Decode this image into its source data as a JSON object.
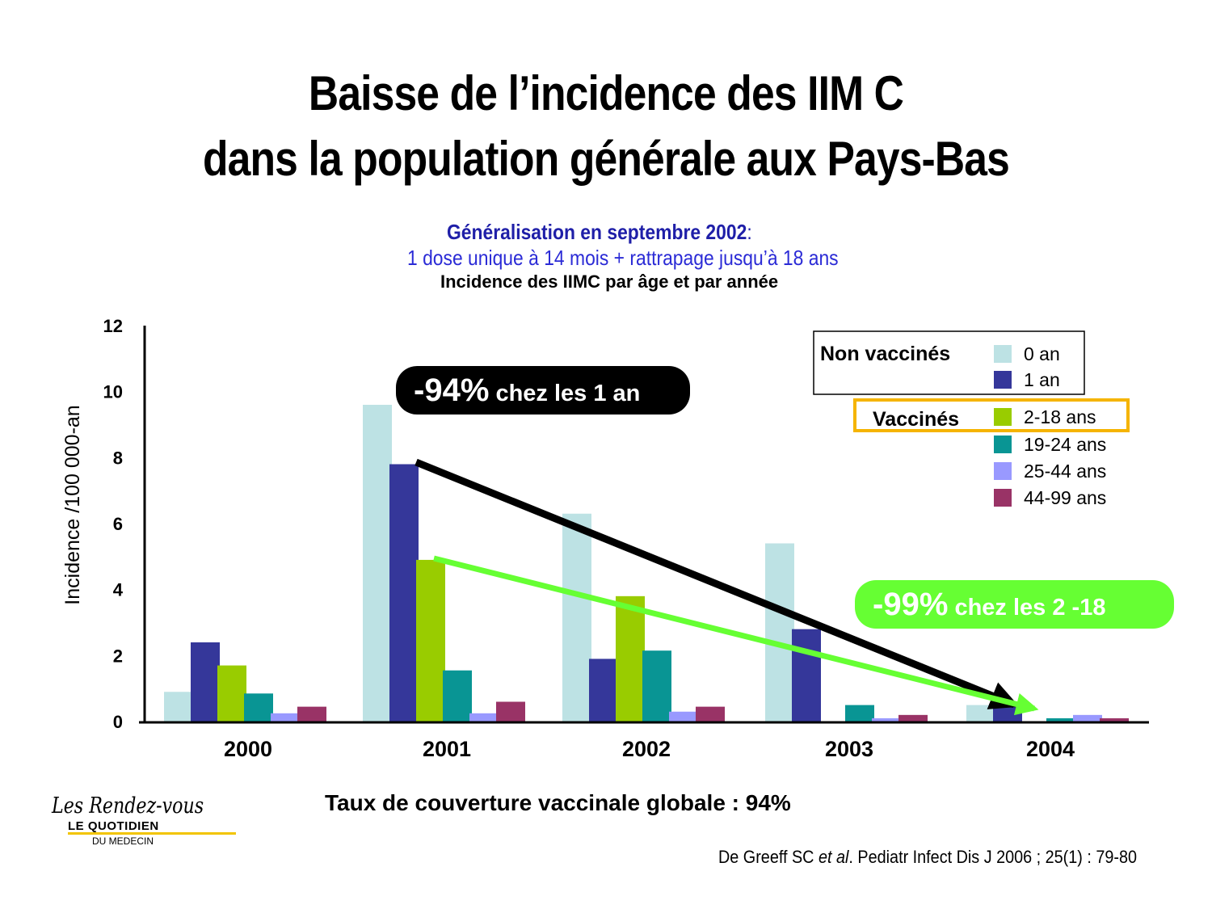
{
  "slide": {
    "title_line1": "Baisse de l’incidence des IIM C",
    "title_line2": "dans la population générale aux Pays-Bas",
    "subtitle_bold": "Généralisation en septembre 2002",
    "subtitle_colon": ":",
    "subtitle_line2": "1 dose unique à 14 mois + rattrapage jusqu’à 18 ans",
    "chart_heading": "Incidence des IIMC par âge et par année",
    "footer": "Taux de couverture vaccinale globale : 94%",
    "citation_authors": "De Greeff SC ",
    "citation_etal": "et al",
    "citation_rest": ".  Pediatr Infect Dis J 2006 ; 25(1) : 79-80",
    "logo": {
      "script": "Les Rendez-vous",
      "brand": "LE QUOTIDIEN",
      "sub": "DU MEDECIN"
    }
  },
  "chart_data": {
    "type": "bar",
    "title": "Incidence des IIMC par âge et par année",
    "ylabel": "Incidence /100 000-an",
    "xlabel": "",
    "ylim": [
      0,
      12
    ],
    "yticks": [
      "0",
      "2",
      "4",
      "6",
      "8",
      "10",
      "12"
    ],
    "categories": [
      "2000",
      "2001",
      "2002",
      "2003",
      "2004"
    ],
    "series": [
      {
        "name": "0 an",
        "group": "Non vaccinés",
        "color": "#bde2e4",
        "values": [
          0.9,
          9.6,
          6.3,
          5.4,
          0.5
        ]
      },
      {
        "name": "1 an",
        "group": "Non vaccinés",
        "color": "#35379a",
        "values": [
          2.4,
          7.8,
          1.9,
          2.8,
          0.5
        ]
      },
      {
        "name": "2-18 ans",
        "group": "Vaccinés",
        "color": "#99cc00",
        "values": [
          1.7,
          4.9,
          3.8,
          0.0,
          0.0
        ]
      },
      {
        "name": "19-24 ans",
        "group": "Vaccinés",
        "color": "#099594",
        "values": [
          0.85,
          1.55,
          2.15,
          0.5,
          0.1
        ]
      },
      {
        "name": "25-44 ans",
        "group": "Vaccinés",
        "color": "#9999ff",
        "values": [
          0.25,
          0.25,
          0.3,
          0.1,
          0.2
        ]
      },
      {
        "name": "44-99 ans",
        "group": "Vaccinés",
        "color": "#993366",
        "values": [
          0.45,
          0.6,
          0.45,
          0.2,
          0.1
        ]
      }
    ],
    "legend": {
      "placement": "top-right",
      "group_non_vaccinated": "Non vaccinés",
      "group_vaccinated": "Vaccinés",
      "vaccinated_highlight_color": "#f5b400"
    },
    "annotations": [
      {
        "id": "one-year",
        "text_big": "-94%",
        "text_small": " chez les 1 an",
        "color": "#000000",
        "text_color": "#ffffff",
        "arrow_from": {
          "x": "2001",
          "value": 7.8
        },
        "arrow_to": {
          "x": "2004",
          "value": 0.5
        }
      },
      {
        "id": "two-eighteen",
        "text_big": "-99%",
        "text_small": " chez les 2 -18",
        "color": "#66ff33",
        "text_color": "#ffffff",
        "arrow_from": {
          "x": "2001",
          "value": 4.9
        },
        "arrow_to": {
          "x": "2004",
          "value": 0.2
        }
      }
    ],
    "grid": false
  }
}
